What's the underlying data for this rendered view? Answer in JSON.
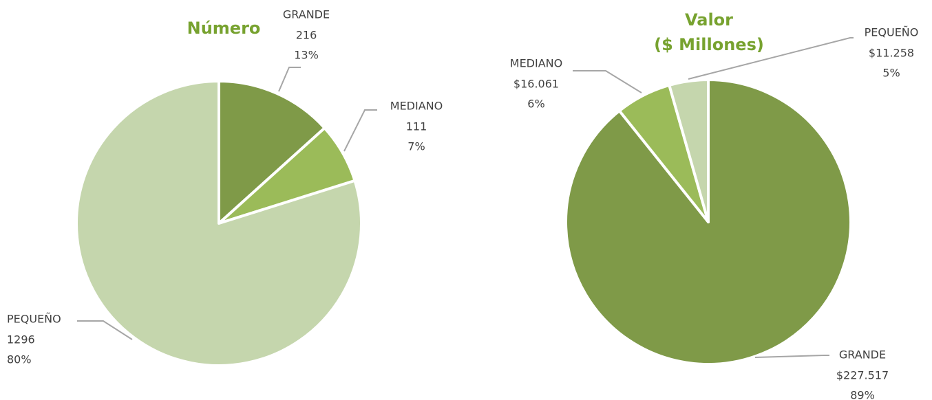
{
  "chart_data": [
    {
      "type": "pie",
      "title": [
        "Número"
      ],
      "categories": [
        "GRANDE",
        "MEDIANO",
        "PEQUEÑO"
      ],
      "values": [
        216,
        111,
        1296
      ],
      "percent_labels": [
        "13%",
        "7%",
        "80%"
      ],
      "colors": [
        "#7f9a48",
        "#9bbb59",
        "#c5d6ad"
      ]
    },
    {
      "type": "pie",
      "title": [
        "Valor",
        "($ Millones)"
      ],
      "categories": [
        "GRANDE",
        "MEDIANO",
        "PEQUEÑO"
      ],
      "values": [
        227517,
        16061,
        11258
      ],
      "value_labels": [
        "$227.517",
        "$16.061",
        "$11.258"
      ],
      "percent_labels": [
        "89%",
        "6%",
        "5%"
      ],
      "colors": [
        "#7f9a48",
        "#9bbb59",
        "#c5d6ad"
      ]
    }
  ]
}
